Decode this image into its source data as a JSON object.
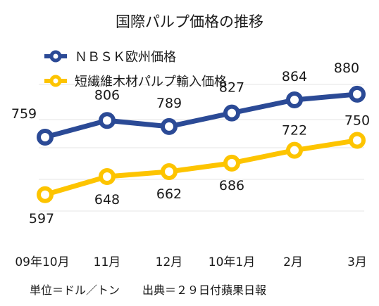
{
  "chart_data": {
    "type": "line",
    "title": "国際パルプ価格の推移",
    "categories": [
      "09年10月",
      "11月",
      "12月",
      "10年1月",
      "2月",
      "3月"
    ],
    "series": [
      {
        "name": "ＮＢＳＫ欧州価格",
        "values": [
          759,
          806,
          789,
          827,
          864,
          880
        ],
        "color": "#2b4a96"
      },
      {
        "name": "短繊維木材パルプ輸入価格",
        "values": [
          597,
          648,
          662,
          686,
          722,
          750
        ],
        "color": "#fdc400"
      }
    ],
    "ylim": [
      500,
      920
    ],
    "grid": "horizontal",
    "legend_position": "top-left",
    "footnote": "単位＝ドル／トン　　出典＝２９日付蘋果日報"
  }
}
